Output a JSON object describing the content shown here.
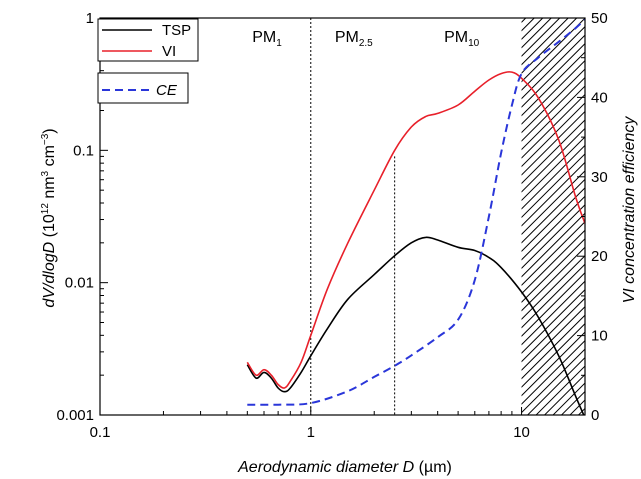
{
  "chart_data": {
    "type": "line",
    "xlabel": {
      "var": "Aerodynamic diameter D",
      "unit": "(µm)"
    },
    "ylabel": {
      "pre": "dV/dlogD",
      "mid": " (10",
      "sup1": "12",
      "mid2": " nm",
      "sup2": "3",
      "mid3": " cm",
      "sup3": "−3",
      "post": ")"
    },
    "y2label": "VI concentration efficiency",
    "x_scale": "log",
    "xlim": [
      0.1,
      20
    ],
    "ylim": [
      0.001,
      1
    ],
    "y2lim": [
      0,
      50
    ],
    "x_ticks": [
      {
        "value": 0.1,
        "label": "0.1"
      },
      {
        "value": 1,
        "label": "1"
      },
      {
        "value": 10,
        "label": "10"
      }
    ],
    "y_ticks": [
      {
        "value": 0.001,
        "label": "0.001"
      },
      {
        "value": 0.01,
        "label": "0.01"
      },
      {
        "value": 0.1,
        "label": "0.1"
      },
      {
        "value": 1,
        "label": "1"
      }
    ],
    "y2_ticks": [
      {
        "value": 0,
        "label": "0"
      },
      {
        "value": 10,
        "label": "10"
      },
      {
        "value": 20,
        "label": "20"
      },
      {
        "value": 30,
        "label": "30"
      },
      {
        "value": 40,
        "label": "40"
      },
      {
        "value": 50,
        "label": "50"
      }
    ],
    "series": [
      {
        "name": "TSP",
        "color": "#000000",
        "dash": "solid",
        "axis": "left",
        "x": [
          0.5,
          0.55,
          0.6,
          0.65,
          0.7,
          0.75,
          0.8,
          0.9,
          1.0,
          1.2,
          1.5,
          2.0,
          2.5,
          3.0,
          3.5,
          4.0,
          5.0,
          6.0,
          7.0,
          8.0,
          10.0,
          12.0,
          15.0,
          18.0,
          20.0
        ],
        "y": [
          0.0024,
          0.0019,
          0.0021,
          0.0019,
          0.0016,
          0.0015,
          0.0016,
          0.0021,
          0.0028,
          0.0045,
          0.0075,
          0.0115,
          0.016,
          0.02,
          0.022,
          0.021,
          0.0185,
          0.0175,
          0.0155,
          0.013,
          0.0085,
          0.0055,
          0.0028,
          0.0014,
          0.00095
        ]
      },
      {
        "name": "VI",
        "color": "#e8202a",
        "dash": "solid",
        "axis": "left",
        "x": [
          0.5,
          0.55,
          0.6,
          0.65,
          0.7,
          0.75,
          0.8,
          0.9,
          1.0,
          1.2,
          1.5,
          2.0,
          2.5,
          3.0,
          3.5,
          4.0,
          5.0,
          6.0,
          7.0,
          8.0,
          9.0,
          10.0,
          12.0,
          15.0,
          18.0,
          20.0
        ],
        "y": [
          0.0025,
          0.002,
          0.0022,
          0.002,
          0.0017,
          0.0016,
          0.0018,
          0.0025,
          0.004,
          0.009,
          0.02,
          0.05,
          0.1,
          0.15,
          0.18,
          0.19,
          0.22,
          0.28,
          0.34,
          0.38,
          0.39,
          0.35,
          0.25,
          0.12,
          0.045,
          0.028
        ]
      },
      {
        "name": "CE",
        "color": "#2a36d9",
        "dash": "dashed",
        "axis": "right",
        "x": [
          0.5,
          0.7,
          1.0,
          1.5,
          2.0,
          2.5,
          3.0,
          4.0,
          5.0,
          6.0,
          7.0,
          8.0,
          9.0,
          10.0,
          12.0,
          15.0,
          18.0,
          20.0
        ],
        "y": [
          1.3,
          1.3,
          1.5,
          3.0,
          4.8,
          6.2,
          7.5,
          9.8,
          12.0,
          17.0,
          25.0,
          33.0,
          39.0,
          43.0,
          45.0,
          47.0,
          48.7,
          49.8
        ]
      }
    ],
    "legend": {
      "position": "top-left",
      "entries": [
        "TSP",
        "VI",
        "CE"
      ]
    },
    "size_cuts": [
      {
        "x": 1.0,
        "label_main": "PM",
        "label_sub": "1",
        "label_x": 0.62
      },
      {
        "x": 2.5,
        "label_main": "PM",
        "label_sub": "2.5",
        "label_x": 1.6
      },
      {
        "x": 10.0,
        "label_main": "PM",
        "label_sub": "10",
        "label_x": 5.2
      }
    ],
    "hatched_region": [
      10,
      20
    ],
    "grid": false
  }
}
